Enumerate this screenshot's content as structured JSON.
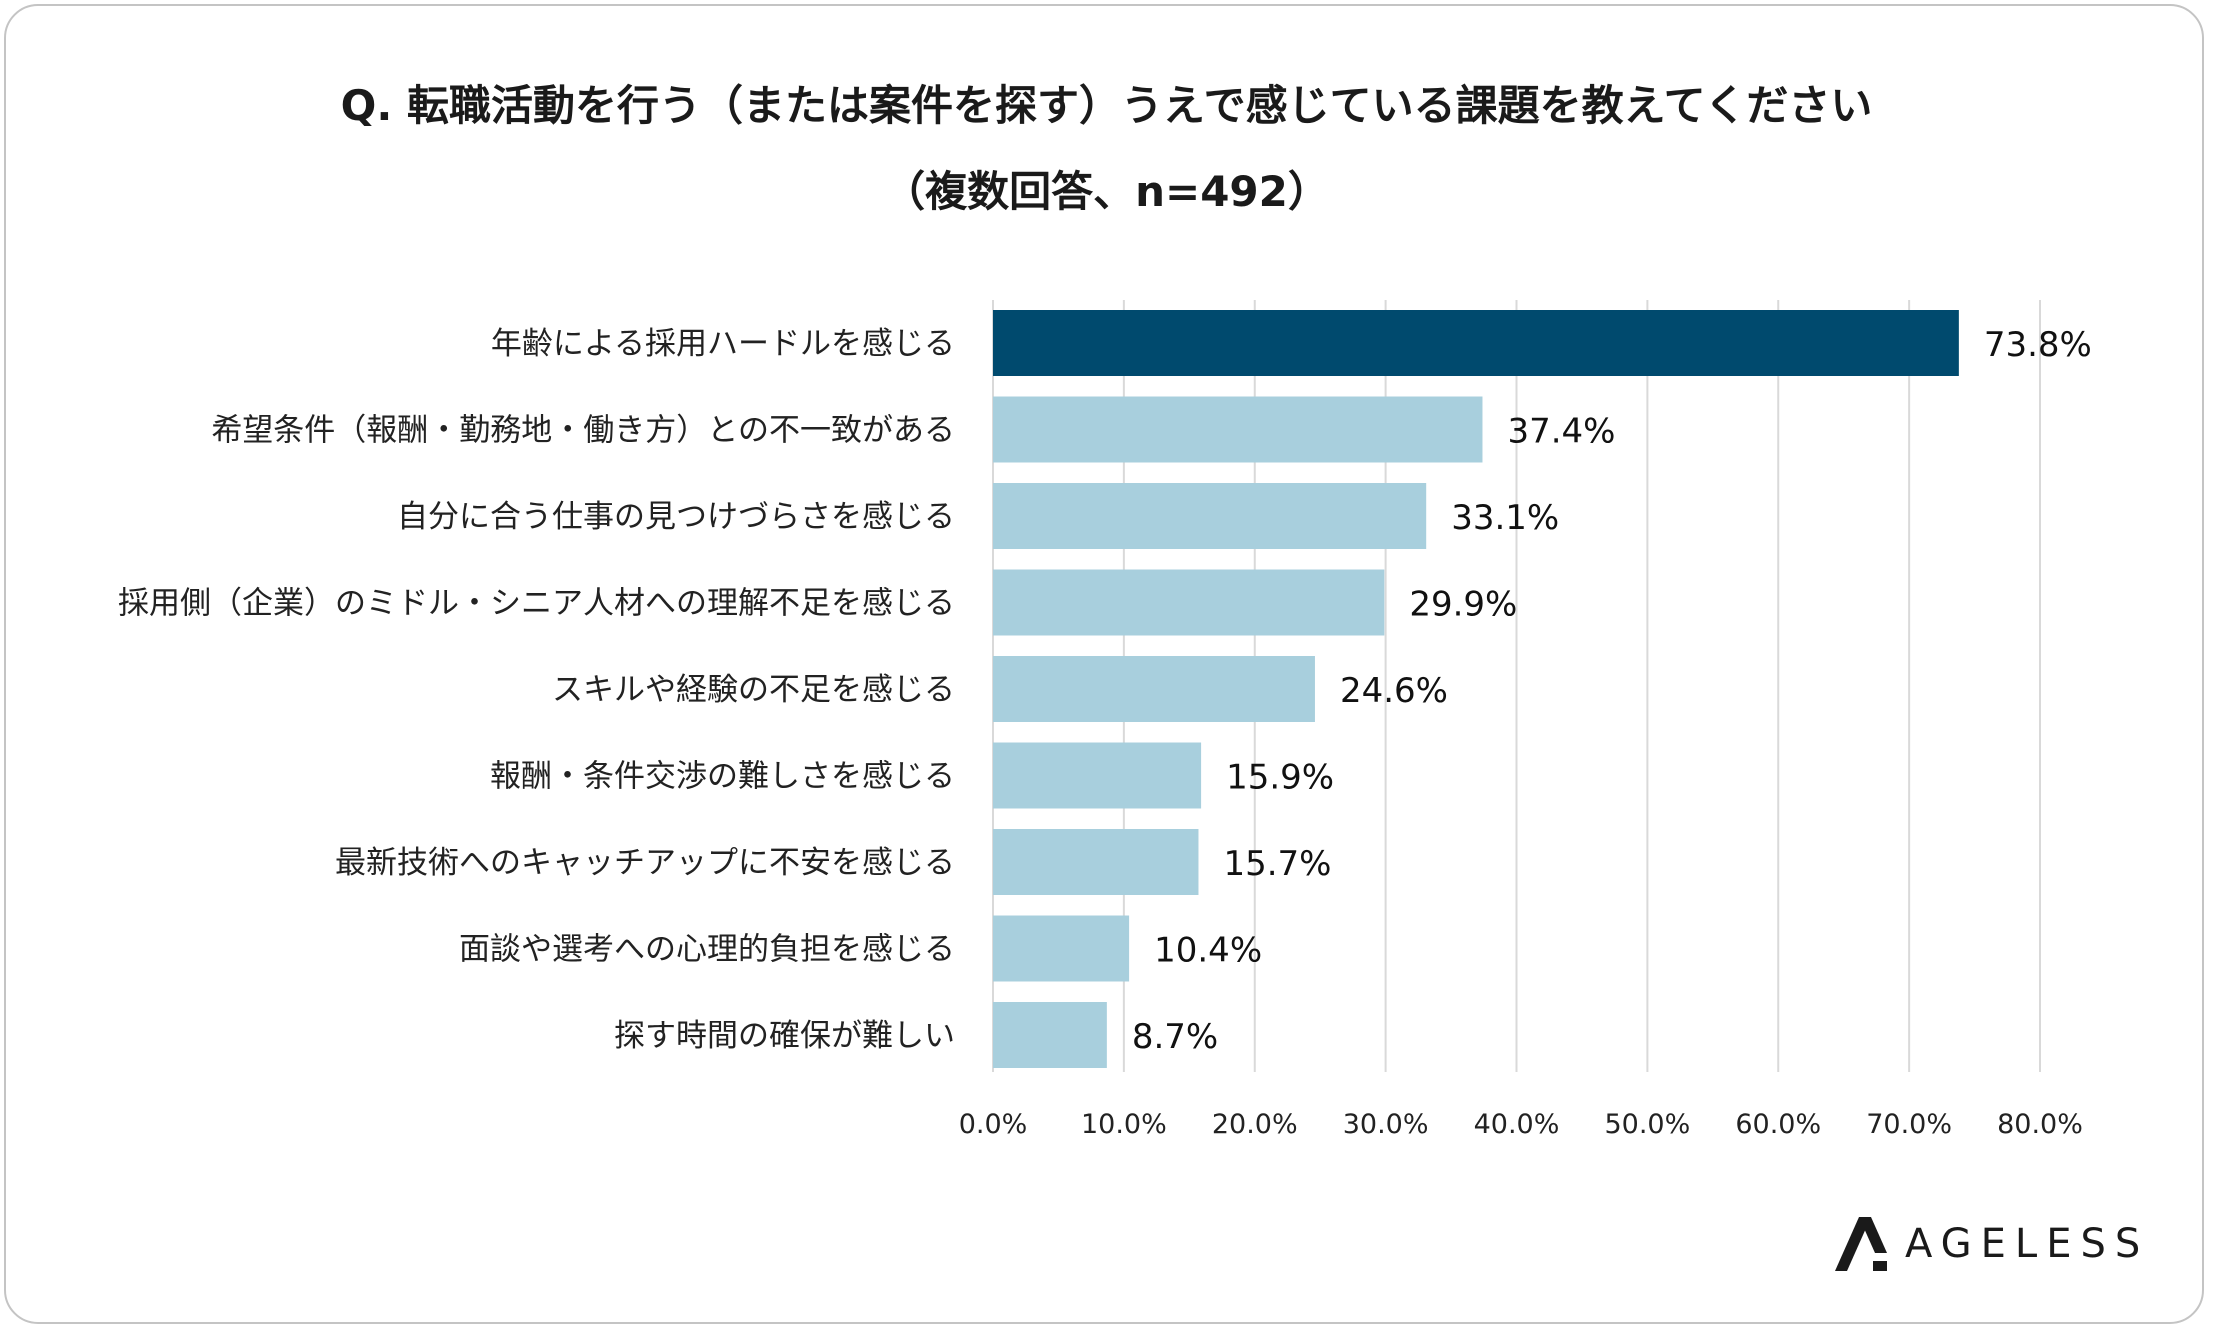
{
  "chart_data": {
    "type": "bar",
    "orientation": "horizontal",
    "title": "Q. 転職活動を行う（または案件を探す）うえで感じている課題を教えてください",
    "subtitle": "（複数回答、n=492）",
    "categories": [
      "年齢による採用ハードルを感じる",
      "希望条件（報酬・勤務地・働き方）との不一致がある",
      "自分に合う仕事の見つけづらさを感じる",
      "採用側（企業）のミドル・シニア人材への理解不足を感じる",
      "スキルや経験の不足を感じる",
      "報酬・条件交渉の難しさを感じる",
      "最新技術へのキャッチアップに不安を感じる",
      "面談や選考への心理的負担を感じる",
      "探す時間の確保が難しい"
    ],
    "values": [
      73.8,
      37.4,
      33.1,
      29.9,
      24.6,
      15.9,
      15.7,
      10.4,
      8.7
    ],
    "value_labels": [
      "73.8%",
      "37.4%",
      "33.1%",
      "29.9%",
      "24.6%",
      "15.9%",
      "15.7%",
      "10.4%",
      "8.7%"
    ],
    "xticks": [
      0,
      10,
      20,
      30,
      40,
      50,
      60,
      70,
      80
    ],
    "xtick_labels": [
      "0.0%",
      "10.0%",
      "20.0%",
      "30.0%",
      "40.0%",
      "50.0%",
      "60.0%",
      "70.0%",
      "80.0%"
    ],
    "xlim": [
      0,
      80
    ],
    "grid": true,
    "xlabel": "",
    "ylabel": "",
    "highlight_color": "#004a6e",
    "bar_color": "#a8cfdd",
    "grid_color": "#d9d9d9"
  },
  "brand": {
    "name": "AGELESS"
  }
}
